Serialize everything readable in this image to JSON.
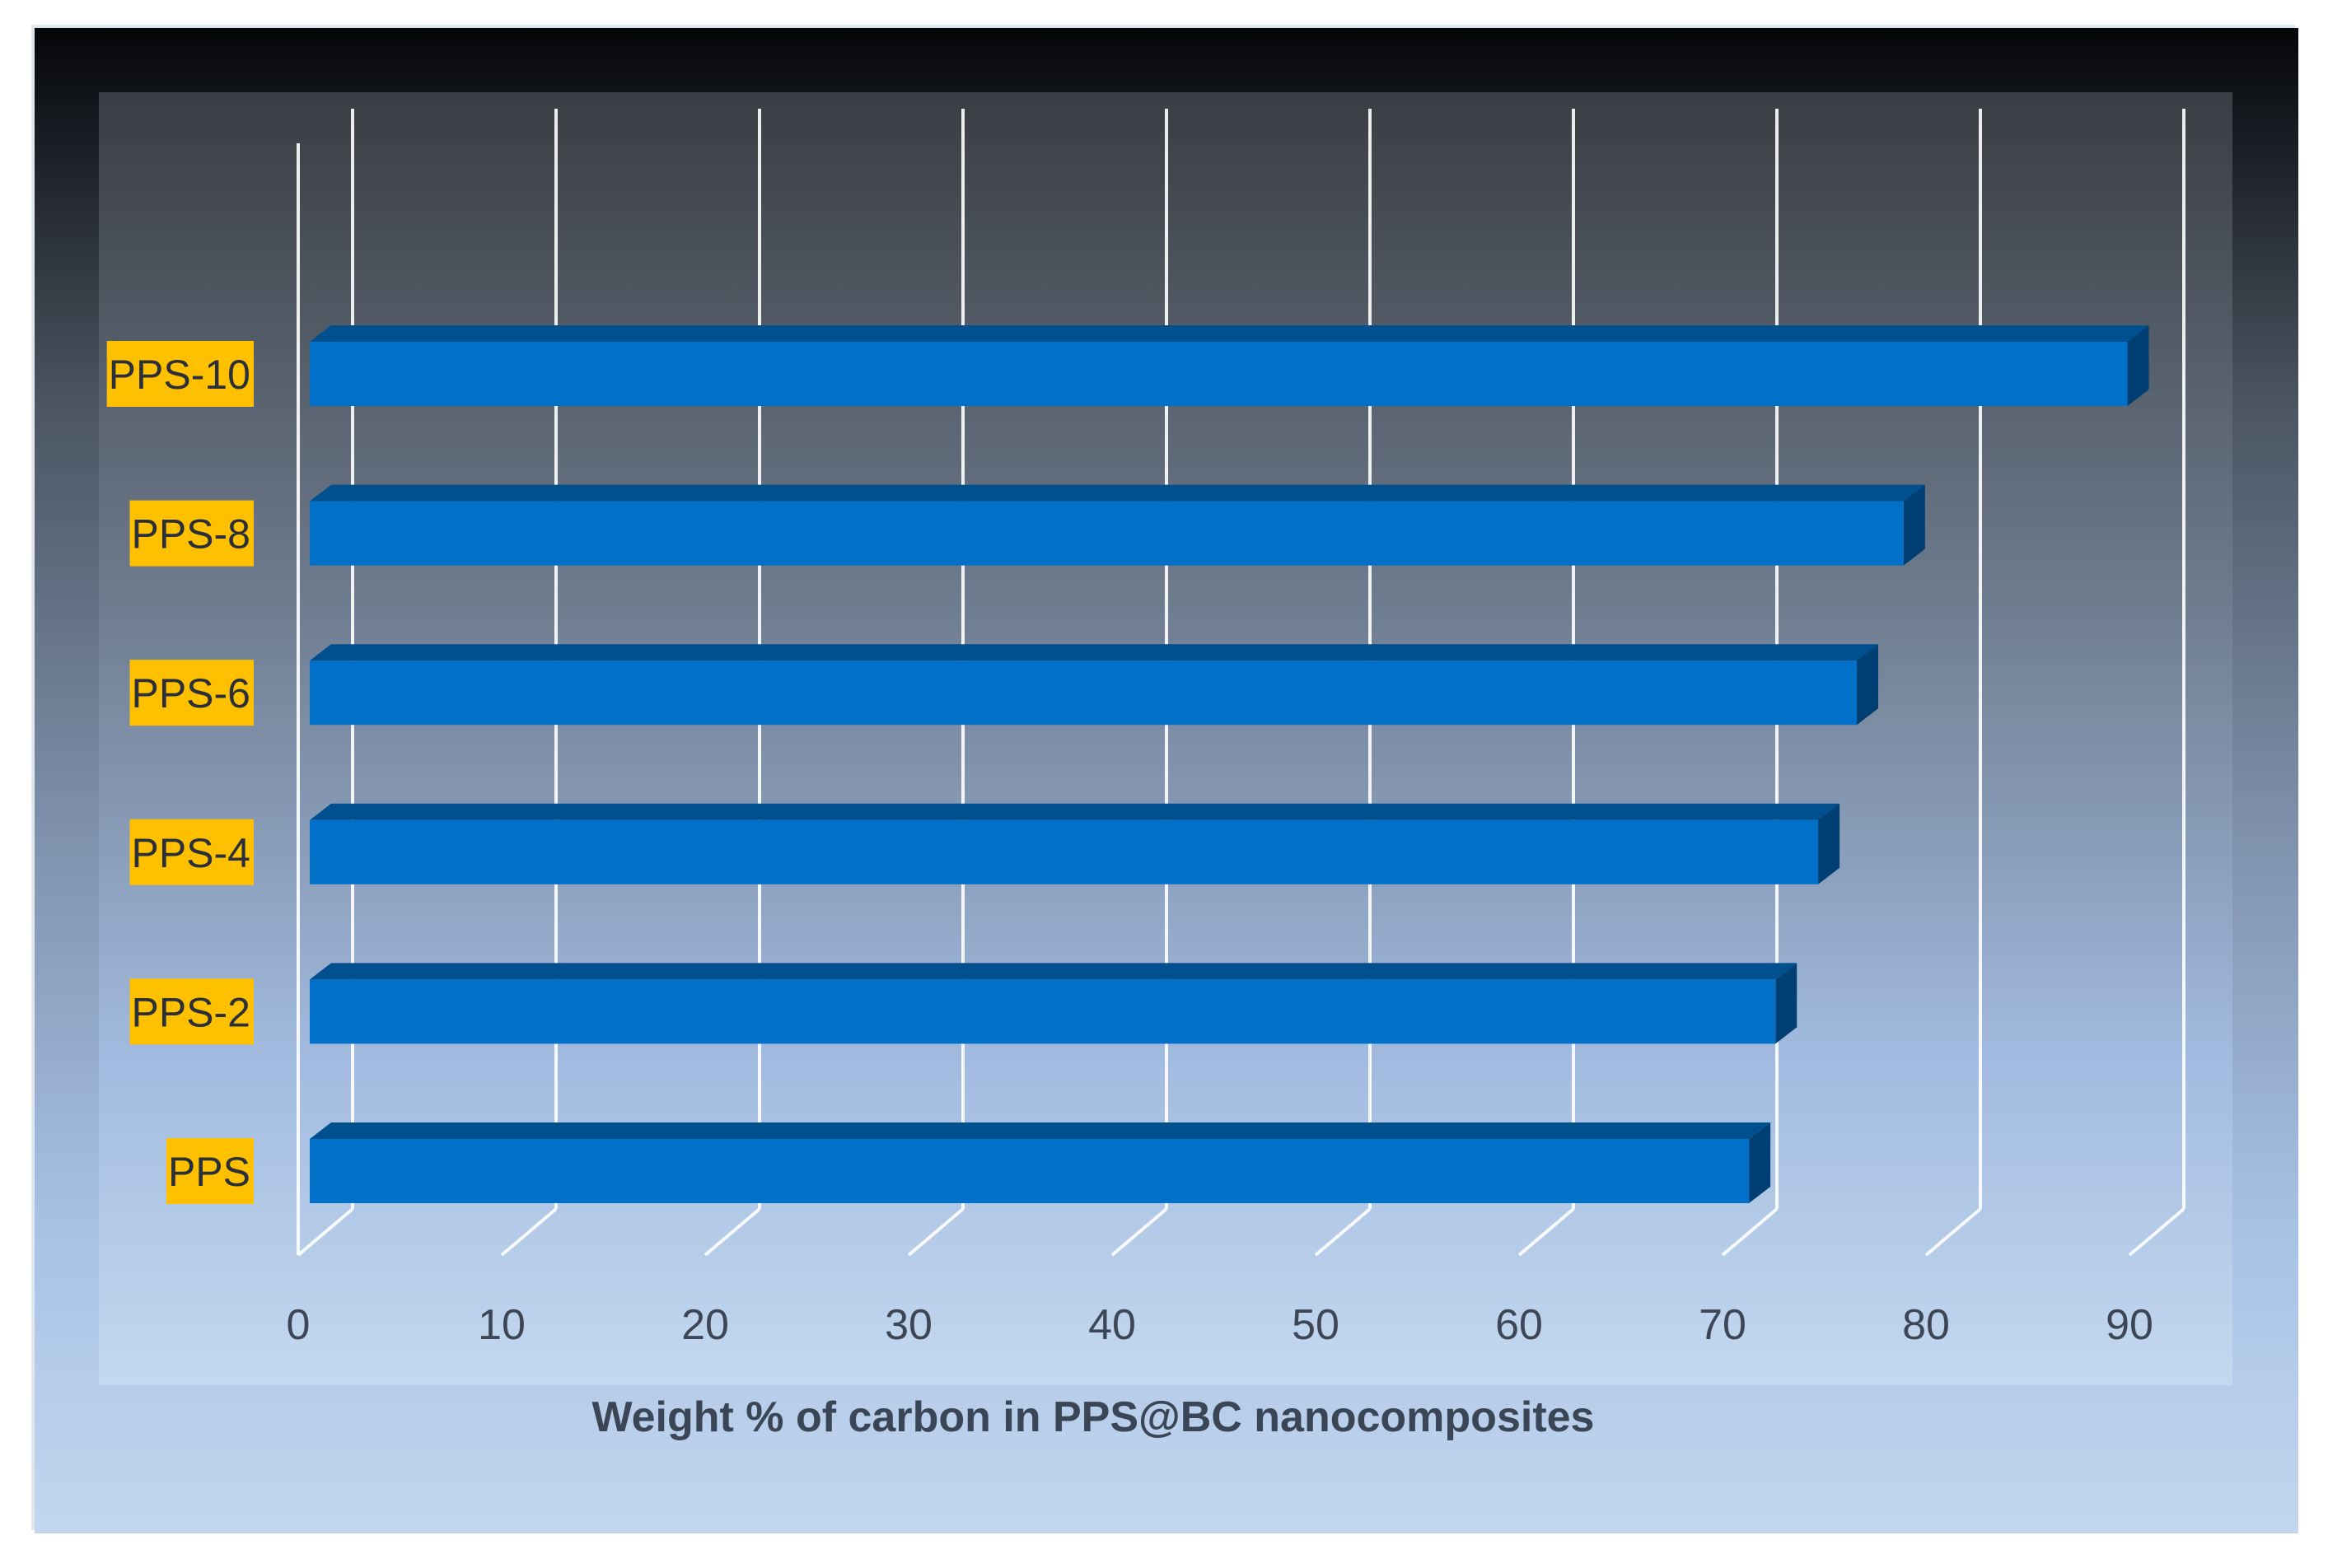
{
  "chart_data": {
    "type": "bar",
    "orientation": "horizontal",
    "style": "3d",
    "categories": [
      "PPS",
      "PPS-2",
      "PPS-4",
      "PPS-6",
      "PPS-8",
      "PPS-10"
    ],
    "values": [
      71.3,
      72.6,
      74.7,
      76.6,
      78.9,
      89.9
    ],
    "xlabel": "Weight  % of carbon in PPS@BC nanocomposites",
    "ylabel": "",
    "xlim": [
      0,
      90
    ],
    "xticks": [
      "0",
      "10",
      "20",
      "30",
      "40",
      "50",
      "60",
      "70",
      "80",
      "90"
    ],
    "grid": true,
    "colors": {
      "bar_front": "#0070c8",
      "bar_top": "#00508f",
      "bar_side": "#003f73",
      "label_bg": "#ffc000",
      "grid": "#ffffff",
      "bg_top": "#050608",
      "bg_bottom": "#c3d6ee"
    }
  }
}
